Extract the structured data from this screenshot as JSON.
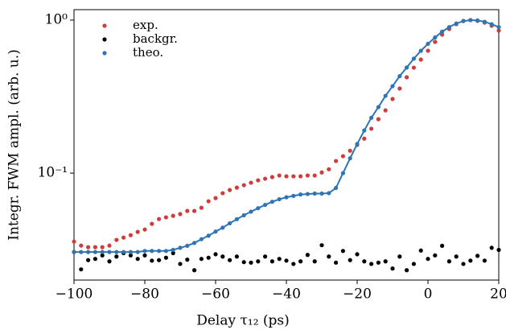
{
  "chart_data": {
    "type": "scatter",
    "xlabel": "Delay τ₁₂ (ps)",
    "ylabel": "Integr. FWM ampl. (arb. u.)",
    "log_y": true,
    "xlim": [
      -100,
      20
    ],
    "ylim": [
      0.02,
      1.17
    ],
    "xticks": [
      {
        "value": -100,
        "label": "−100"
      },
      {
        "value": -80,
        "label": "−80"
      },
      {
        "value": -60,
        "label": "−60"
      },
      {
        "value": -40,
        "label": "−40"
      },
      {
        "value": -20,
        "label": "−20"
      },
      0,
      20
    ],
    "yticks": [
      {
        "value": 0.1,
        "label": "10⁻¹"
      },
      {
        "value": 1,
        "label": "10⁰"
      }
    ],
    "legend": "upper left",
    "x": [
      -100,
      -98,
      -96,
      -94,
      -92,
      -90,
      -88,
      -86,
      -84,
      -82,
      -80,
      -78,
      -76,
      -74,
      -72,
      -70,
      -68,
      -66,
      -64,
      -62,
      -60,
      -58,
      -56,
      -54,
      -52,
      -50,
      -48,
      -46,
      -44,
      -42,
      -40,
      -38,
      -36,
      -34,
      -32,
      -30,
      -28,
      -26,
      -24,
      -22,
      -20,
      -18,
      -16,
      -14,
      -12,
      -10,
      -8,
      -6,
      -4,
      -2,
      0,
      2,
      4,
      6,
      8,
      10,
      12,
      14,
      16,
      18,
      20
    ],
    "series": [
      {
        "name": "exp.",
        "color": "#d03c3c",
        "values": [
          0.0357,
          0.0336,
          0.0328,
          0.0328,
          0.0328,
          0.0336,
          0.0366,
          0.0379,
          0.0393,
          0.0413,
          0.0428,
          0.0466,
          0.0501,
          0.0514,
          0.0526,
          0.054,
          0.0566,
          0.0566,
          0.0594,
          0.0655,
          0.0687,
          0.0739,
          0.0775,
          0.0804,
          0.0834,
          0.0865,
          0.0897,
          0.0919,
          0.0942,
          0.0965,
          0.0953,
          0.0953,
          0.0953,
          0.0965,
          0.0965,
          0.101,
          0.106,
          0.12,
          0.129,
          0.14,
          0.153,
          0.168,
          0.195,
          0.225,
          0.257,
          0.305,
          0.357,
          0.423,
          0.489,
          0.552,
          0.631,
          0.721,
          0.804,
          0.875,
          0.941,
          0.988,
          1.0,
          0.988,
          0.964,
          0.919,
          0.854
        ]
      },
      {
        "name": "backgr.",
        "color": "#000000",
        "values": [
          0.0305,
          0.0235,
          0.027,
          0.0275,
          0.029,
          0.0265,
          0.0285,
          0.03,
          0.029,
          0.0275,
          0.029,
          0.0268,
          0.027,
          0.028,
          0.03,
          0.0255,
          0.0272,
          0.0232,
          0.0275,
          0.028,
          0.0295,
          0.0285,
          0.027,
          0.0285,
          0.0262,
          0.026,
          0.0265,
          0.0285,
          0.0265,
          0.0275,
          0.0268,
          0.0255,
          0.0265,
          0.0292,
          0.0265,
          0.0338,
          0.0285,
          0.026,
          0.031,
          0.027,
          0.0295,
          0.0265,
          0.0255,
          0.026,
          0.0265,
          0.0238,
          0.0285,
          0.0232,
          0.0255,
          0.0312,
          0.0275,
          0.029,
          0.0335,
          0.0265,
          0.0285,
          0.0255,
          0.0268,
          0.0288,
          0.0268,
          0.0325,
          0.0315
        ]
      },
      {
        "name": "theo.",
        "color": "#2f74b5",
        "line": true,
        "values": [
          0.0305,
          0.0305,
          0.0305,
          0.0305,
          0.0305,
          0.0305,
          0.0305,
          0.0305,
          0.0305,
          0.0305,
          0.031,
          0.031,
          0.031,
          0.031,
          0.0315,
          0.0325,
          0.0335,
          0.035,
          0.037,
          0.039,
          0.0415,
          0.044,
          0.047,
          0.05,
          0.053,
          0.056,
          0.059,
          0.062,
          0.065,
          0.0675,
          0.0695,
          0.071,
          0.0725,
          0.073,
          0.0735,
          0.0735,
          0.074,
          0.08,
          0.1,
          0.125,
          0.155,
          0.19,
          0.23,
          0.27,
          0.32,
          0.37,
          0.43,
          0.49,
          0.56,
          0.63,
          0.7,
          0.77,
          0.84,
          0.9,
          0.95,
          0.985,
          1.0,
          0.995,
          0.975,
          0.94,
          0.9
        ]
      }
    ]
  }
}
